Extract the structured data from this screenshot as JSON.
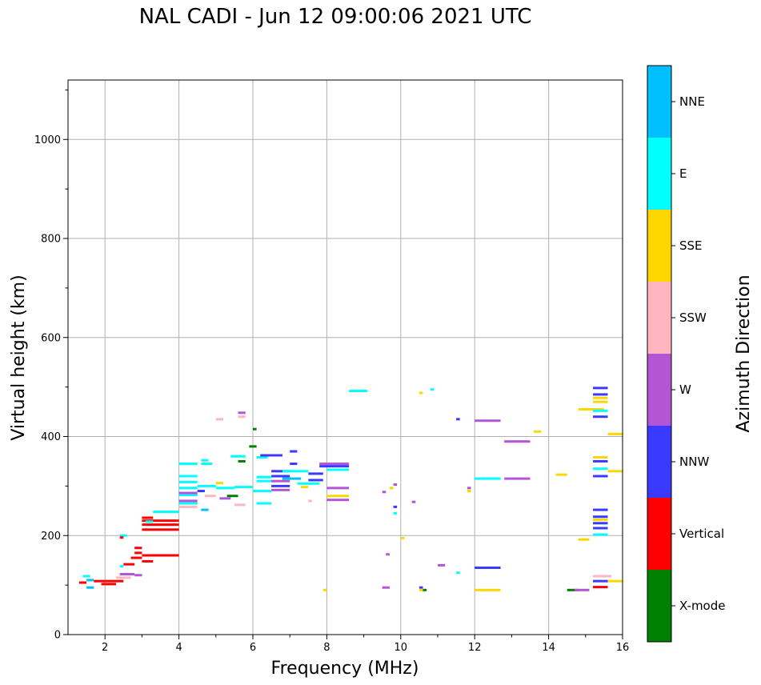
{
  "title": "NAL CADI - Jun 12 09:00:06 2021 UTC",
  "chart_data": {
    "type": "scatter",
    "title": "NAL CADI - Jun 12 09:00:06 2021 UTC",
    "xlabel": "Frequency (MHz)",
    "ylabel": "Virtual height (km)",
    "xlim": [
      1,
      16
    ],
    "ylim": [
      0,
      1120
    ],
    "xticks": [
      2,
      4,
      6,
      8,
      10,
      12,
      14,
      16
    ],
    "yticks": [
      0,
      200,
      400,
      600,
      800,
      1000
    ],
    "grid": true,
    "colorbar": {
      "label": "Azimuth Direction",
      "categories": [
        {
          "name": "X-mode",
          "color": "#008000"
        },
        {
          "name": "Vertical",
          "color": "#ff0000"
        },
        {
          "name": "NNW",
          "color": "#3a3aff"
        },
        {
          "name": "W",
          "color": "#b455d6"
        },
        {
          "name": "SSW",
          "color": "#ffb6c1"
        },
        {
          "name": "SSE",
          "color": "#ffd700"
        },
        {
          "name": "E",
          "color": "#00ffff"
        },
        {
          "name": "NNE",
          "color": "#00bfff"
        }
      ]
    },
    "echoes": [
      {
        "dir": "NNE",
        "x0": 1.5,
        "x1": 1.7,
        "y": 110
      },
      {
        "dir": "NNE",
        "x0": 1.5,
        "x1": 1.7,
        "y": 95
      },
      {
        "dir": "Vertical",
        "x0": 1.3,
        "x1": 1.5,
        "y": 105
      },
      {
        "dir": "Vertical",
        "x0": 1.7,
        "x1": 2.5,
        "y": 108
      },
      {
        "dir": "Vertical",
        "x0": 1.9,
        "x1": 2.3,
        "y": 102
      },
      {
        "dir": "E",
        "x0": 1.4,
        "x1": 1.6,
        "y": 118
      },
      {
        "dir": "SSW",
        "x0": 2.3,
        "x1": 2.7,
        "y": 115
      },
      {
        "dir": "W",
        "x0": 2.4,
        "x1": 2.8,
        "y": 122
      },
      {
        "dir": "E",
        "x0": 2.4,
        "x1": 2.5,
        "y": 138
      },
      {
        "dir": "E",
        "x0": 2.4,
        "x1": 2.6,
        "y": 200
      },
      {
        "dir": "Vertical",
        "x0": 2.4,
        "x1": 2.5,
        "y": 196
      },
      {
        "dir": "Vertical",
        "x0": 2.5,
        "x1": 2.8,
        "y": 142
      },
      {
        "dir": "Vertical",
        "x0": 2.7,
        "x1": 3.0,
        "y": 155
      },
      {
        "dir": "Vertical",
        "x0": 2.8,
        "x1": 3.0,
        "y": 165
      },
      {
        "dir": "Vertical",
        "x0": 2.8,
        "x1": 3.0,
        "y": 175
      },
      {
        "dir": "Vertical",
        "x0": 3.0,
        "x1": 4.0,
        "y": 160
      },
      {
        "dir": "Vertical",
        "x0": 3.0,
        "x1": 3.3,
        "y": 148
      },
      {
        "dir": "W",
        "x0": 2.8,
        "x1": 3.0,
        "y": 120
      },
      {
        "dir": "Vertical",
        "x0": 3.0,
        "x1": 4.0,
        "y": 212
      },
      {
        "dir": "Vertical",
        "x0": 3.0,
        "x1": 4.0,
        "y": 222
      },
      {
        "dir": "Vertical",
        "x0": 3.0,
        "x1": 4.0,
        "y": 230
      },
      {
        "dir": "Vertical",
        "x0": 3.0,
        "x1": 3.3,
        "y": 236
      },
      {
        "dir": "E",
        "x0": 3.3,
        "x1": 4.0,
        "y": 248
      },
      {
        "dir": "E",
        "x0": 3.1,
        "x1": 3.3,
        "y": 228
      },
      {
        "dir": "E",
        "x0": 4.0,
        "x1": 4.5,
        "y": 345
      },
      {
        "dir": "E",
        "x0": 4.0,
        "x1": 4.5,
        "y": 320
      },
      {
        "dir": "E",
        "x0": 4.0,
        "x1": 4.5,
        "y": 308
      },
      {
        "dir": "E",
        "x0": 4.0,
        "x1": 4.5,
        "y": 296
      },
      {
        "dir": "E",
        "x0": 4.0,
        "x1": 4.5,
        "y": 282
      },
      {
        "dir": "W",
        "x0": 4.0,
        "x1": 4.5,
        "y": 270
      },
      {
        "dir": "W",
        "x0": 4.0,
        "x1": 4.5,
        "y": 286
      },
      {
        "dir": "SSW",
        "x0": 4.0,
        "x1": 4.5,
        "y": 258
      },
      {
        "dir": "E",
        "x0": 4.0,
        "x1": 4.5,
        "y": 265
      },
      {
        "dir": "NNW",
        "x0": 4.5,
        "x1": 4.7,
        "y": 290
      },
      {
        "dir": "E",
        "x0": 4.5,
        "x1": 5.0,
        "y": 300
      },
      {
        "dir": "E",
        "x0": 4.6,
        "x1": 4.9,
        "y": 345
      },
      {
        "dir": "E",
        "x0": 4.6,
        "x1": 4.8,
        "y": 352
      },
      {
        "dir": "SSW",
        "x0": 4.7,
        "x1": 5.0,
        "y": 280
      },
      {
        "dir": "NNE",
        "x0": 4.6,
        "x1": 4.8,
        "y": 252
      },
      {
        "dir": "E",
        "x0": 5.0,
        "x1": 5.5,
        "y": 296
      },
      {
        "dir": "SSE",
        "x0": 5.0,
        "x1": 5.2,
        "y": 306
      },
      {
        "dir": "W",
        "x0": 5.1,
        "x1": 5.4,
        "y": 275
      },
      {
        "dir": "X-mode",
        "x0": 5.3,
        "x1": 5.6,
        "y": 280
      },
      {
        "dir": "X-mode",
        "x0": 5.6,
        "x1": 5.8,
        "y": 350
      },
      {
        "dir": "E",
        "x0": 5.4,
        "x1": 5.8,
        "y": 360
      },
      {
        "dir": "SSW",
        "x0": 5.5,
        "x1": 5.8,
        "y": 262
      },
      {
        "dir": "W",
        "x0": 5.6,
        "x1": 5.8,
        "y": 448
      },
      {
        "dir": "SSW",
        "x0": 5.6,
        "x1": 5.8,
        "y": 440
      },
      {
        "dir": "SSW",
        "x0": 5.0,
        "x1": 5.2,
        "y": 435
      },
      {
        "dir": "E",
        "x0": 5.5,
        "x1": 6.0,
        "y": 298
      },
      {
        "dir": "X-mode",
        "x0": 5.9,
        "x1": 6.1,
        "y": 380
      },
      {
        "dir": "X-mode",
        "x0": 6.0,
        "x1": 6.1,
        "y": 415
      },
      {
        "dir": "E",
        "x0": 6.0,
        "x1": 6.5,
        "y": 290
      },
      {
        "dir": "E",
        "x0": 6.1,
        "x1": 6.5,
        "y": 310
      },
      {
        "dir": "E",
        "x0": 6.1,
        "x1": 6.5,
        "y": 318
      },
      {
        "dir": "E",
        "x0": 6.1,
        "x1": 6.4,
        "y": 358
      },
      {
        "dir": "E",
        "x0": 6.1,
        "x1": 6.5,
        "y": 265
      },
      {
        "dir": "NNW",
        "x0": 6.2,
        "x1": 6.8,
        "y": 362
      },
      {
        "dir": "NNW",
        "x0": 6.5,
        "x1": 7.0,
        "y": 330
      },
      {
        "dir": "NNW",
        "x0": 6.5,
        "x1": 7.0,
        "y": 320
      },
      {
        "dir": "W",
        "x0": 6.5,
        "x1": 7.0,
        "y": 310
      },
      {
        "dir": "NNW",
        "x0": 6.5,
        "x1": 7.0,
        "y": 300
      },
      {
        "dir": "W",
        "x0": 6.5,
        "x1": 7.0,
        "y": 292
      },
      {
        "dir": "NNE",
        "x0": 6.8,
        "x1": 7.3,
        "y": 315
      },
      {
        "dir": "E",
        "x0": 6.8,
        "x1": 7.5,
        "y": 330
      },
      {
        "dir": "NNW",
        "x0": 7.0,
        "x1": 7.2,
        "y": 370
      },
      {
        "dir": "NNW",
        "x0": 7.0,
        "x1": 7.2,
        "y": 345
      },
      {
        "dir": "E",
        "x0": 7.2,
        "x1": 7.8,
        "y": 305
      },
      {
        "dir": "NNW",
        "x0": 7.5,
        "x1": 7.9,
        "y": 325
      },
      {
        "dir": "NNW",
        "x0": 7.5,
        "x1": 7.9,
        "y": 312
      },
      {
        "dir": "SSE",
        "x0": 7.3,
        "x1": 7.5,
        "y": 298
      },
      {
        "dir": "W",
        "x0": 7.8,
        "x1": 8.6,
        "y": 345
      },
      {
        "dir": "NNW",
        "x0": 7.8,
        "x1": 8.6,
        "y": 340
      },
      {
        "dir": "E",
        "x0": 8.0,
        "x1": 8.6,
        "y": 333
      },
      {
        "dir": "W",
        "x0": 8.0,
        "x1": 8.6,
        "y": 296
      },
      {
        "dir": "SSE",
        "x0": 8.0,
        "x1": 8.6,
        "y": 280
      },
      {
        "dir": "W",
        "x0": 8.0,
        "x1": 8.6,
        "y": 272
      },
      {
        "dir": "SSW",
        "x0": 7.5,
        "x1": 7.6,
        "y": 270
      },
      {
        "dir": "SSE",
        "x0": 7.9,
        "x1": 8.0,
        "y": 90
      },
      {
        "dir": "E",
        "x0": 8.6,
        "x1": 9.1,
        "y": 492
      },
      {
        "dir": "W",
        "x0": 9.5,
        "x1": 9.7,
        "y": 95
      },
      {
        "dir": "W",
        "x0": 9.6,
        "x1": 9.7,
        "y": 162
      },
      {
        "dir": "W",
        "x0": 9.8,
        "x1": 9.9,
        "y": 303
      },
      {
        "dir": "W",
        "x0": 9.5,
        "x1": 9.6,
        "y": 288
      },
      {
        "dir": "SSE",
        "x0": 9.7,
        "x1": 9.8,
        "y": 296
      },
      {
        "dir": "NNW",
        "x0": 9.8,
        "x1": 9.9,
        "y": 258
      },
      {
        "dir": "E",
        "x0": 9.8,
        "x1": 9.9,
        "y": 245
      },
      {
        "dir": "SSE",
        "x0": 10.0,
        "x1": 10.1,
        "y": 195
      },
      {
        "dir": "W",
        "x0": 10.3,
        "x1": 10.4,
        "y": 268
      },
      {
        "dir": "SSE",
        "x0": 10.5,
        "x1": 10.6,
        "y": 488
      },
      {
        "dir": "E",
        "x0": 10.8,
        "x1": 10.9,
        "y": 495
      },
      {
        "dir": "NNW",
        "x0": 10.5,
        "x1": 10.6,
        "y": 95
      },
      {
        "dir": "SSE",
        "x0": 10.5,
        "x1": 10.6,
        "y": 90
      },
      {
        "dir": "X-mode",
        "x0": 10.6,
        "x1": 10.7,
        "y": 90
      },
      {
        "dir": "W",
        "x0": 11.0,
        "x1": 11.2,
        "y": 140
      },
      {
        "dir": "E",
        "x0": 11.5,
        "x1": 11.6,
        "y": 125
      },
      {
        "dir": "NNW",
        "x0": 11.5,
        "x1": 11.6,
        "y": 435
      },
      {
        "dir": "SSE",
        "x0": 11.8,
        "x1": 11.9,
        "y": 290
      },
      {
        "dir": "W",
        "x0": 11.8,
        "x1": 11.9,
        "y": 296
      },
      {
        "dir": "NNW",
        "x0": 12.0,
        "x1": 12.7,
        "y": 135
      },
      {
        "dir": "SSE",
        "x0": 12.0,
        "x1": 12.7,
        "y": 90
      },
      {
        "dir": "E",
        "x0": 12.0,
        "x1": 12.7,
        "y": 315
      },
      {
        "dir": "W",
        "x0": 12.0,
        "x1": 12.7,
        "y": 432
      },
      {
        "dir": "W",
        "x0": 12.8,
        "x1": 13.5,
        "y": 315
      },
      {
        "dir": "W",
        "x0": 12.8,
        "x1": 13.5,
        "y": 390
      },
      {
        "dir": "SSE",
        "x0": 13.6,
        "x1": 13.8,
        "y": 410
      },
      {
        "dir": "SSE",
        "x0": 14.2,
        "x1": 14.5,
        "y": 323
      },
      {
        "dir": "X-mode",
        "x0": 14.5,
        "x1": 14.8,
        "y": 90
      },
      {
        "dir": "W",
        "x0": 14.7,
        "x1": 15.1,
        "y": 90
      },
      {
        "dir": "SSE",
        "x0": 14.8,
        "x1": 15.1,
        "y": 192
      },
      {
        "dir": "SSE",
        "x0": 14.8,
        "x1": 15.5,
        "y": 455
      },
      {
        "dir": "NNW",
        "x0": 15.2,
        "x1": 15.6,
        "y": 498
      },
      {
        "dir": "NNW",
        "x0": 15.2,
        "x1": 15.6,
        "y": 485
      },
      {
        "dir": "SSE",
        "x0": 15.2,
        "x1": 15.6,
        "y": 478
      },
      {
        "dir": "SSE",
        "x0": 15.2,
        "x1": 15.6,
        "y": 470
      },
      {
        "dir": "E",
        "x0": 15.2,
        "x1": 15.6,
        "y": 452
      },
      {
        "dir": "NNW",
        "x0": 15.2,
        "x1": 15.6,
        "y": 440
      },
      {
        "dir": "SSE",
        "x0": 15.6,
        "x1": 16.0,
        "y": 405
      },
      {
        "dir": "SSE",
        "x0": 15.2,
        "x1": 15.6,
        "y": 358
      },
      {
        "dir": "NNW",
        "x0": 15.2,
        "x1": 15.6,
        "y": 350
      },
      {
        "dir": "E",
        "x0": 15.2,
        "x1": 15.6,
        "y": 335
      },
      {
        "dir": "NNW",
        "x0": 15.2,
        "x1": 15.6,
        "y": 320
      },
      {
        "dir": "SSE",
        "x0": 15.6,
        "x1": 16.0,
        "y": 330
      },
      {
        "dir": "NNW",
        "x0": 15.2,
        "x1": 15.6,
        "y": 252
      },
      {
        "dir": "NNW",
        "x0": 15.2,
        "x1": 15.6,
        "y": 238
      },
      {
        "dir": "SSE",
        "x0": 15.2,
        "x1": 15.6,
        "y": 232
      },
      {
        "dir": "NNW",
        "x0": 15.2,
        "x1": 15.6,
        "y": 225
      },
      {
        "dir": "NNW",
        "x0": 15.2,
        "x1": 15.6,
        "y": 215
      },
      {
        "dir": "E",
        "x0": 15.2,
        "x1": 15.6,
        "y": 202
      },
      {
        "dir": "SSW",
        "x0": 15.2,
        "x1": 15.7,
        "y": 118
      },
      {
        "dir": "NNW",
        "x0": 15.2,
        "x1": 15.6,
        "y": 108
      },
      {
        "dir": "SSE",
        "x0": 15.6,
        "x1": 16.0,
        "y": 108
      },
      {
        "dir": "Vertical",
        "x0": 15.2,
        "x1": 15.6,
        "y": 96
      }
    ]
  }
}
